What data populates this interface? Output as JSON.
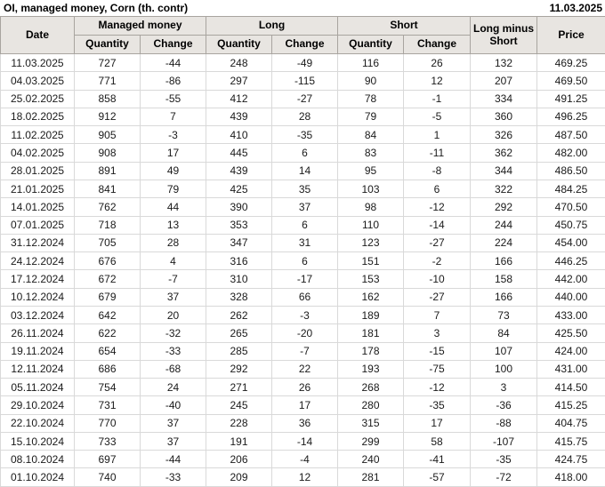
{
  "title": "OI, managed money, Corn (th. contr)",
  "report_date": "11.03.2025",
  "colors": {
    "negative_change": "#cc2222",
    "positive_change": "#1f8c1f",
    "header_background": "#e8e5e1",
    "body_grid": "#d9d9d9",
    "header_grid": "#a8a49f"
  },
  "chart_data": {
    "type": "table",
    "title": "OI, managed money, Corn (th. contr)",
    "as_of_date": "11.03.2025",
    "header": {
      "date": "Date",
      "managed_money": "Managed money",
      "long": "Long",
      "short": "Short",
      "long_minus_short": "Long minus Short",
      "price": "Price",
      "quantity": "Quantity",
      "change": "Change"
    },
    "columns": [
      "Date",
      "Managed money Quantity",
      "Managed money Change",
      "Long Quantity",
      "Long Change",
      "Short Quantity",
      "Short Change",
      "Long minus Short",
      "Price"
    ],
    "rows": [
      {
        "date": "11.03.2025",
        "mm_qty": 727,
        "mm_chg": -44,
        "long_qty": 248,
        "long_chg": -49,
        "short_qty": 116,
        "short_chg": 26,
        "lms": 132,
        "price": "469.25"
      },
      {
        "date": "04.03.2025",
        "mm_qty": 771,
        "mm_chg": -86,
        "long_qty": 297,
        "long_chg": -115,
        "short_qty": 90,
        "short_chg": 12,
        "lms": 207,
        "price": "469.50"
      },
      {
        "date": "25.02.2025",
        "mm_qty": 858,
        "mm_chg": -55,
        "long_qty": 412,
        "long_chg": -27,
        "short_qty": 78,
        "short_chg": -1,
        "lms": 334,
        "price": "491.25"
      },
      {
        "date": "18.02.2025",
        "mm_qty": 912,
        "mm_chg": 7,
        "long_qty": 439,
        "long_chg": 28,
        "short_qty": 79,
        "short_chg": -5,
        "lms": 360,
        "price": "496.25"
      },
      {
        "date": "11.02.2025",
        "mm_qty": 905,
        "mm_chg": -3,
        "long_qty": 410,
        "long_chg": -35,
        "short_qty": 84,
        "short_chg": 1,
        "lms": 326,
        "price": "487.50"
      },
      {
        "date": "04.02.2025",
        "mm_qty": 908,
        "mm_chg": 17,
        "long_qty": 445,
        "long_chg": 6,
        "short_qty": 83,
        "short_chg": -11,
        "lms": 362,
        "price": "482.00"
      },
      {
        "date": "28.01.2025",
        "mm_qty": 891,
        "mm_chg": 49,
        "long_qty": 439,
        "long_chg": 14,
        "short_qty": 95,
        "short_chg": -8,
        "lms": 344,
        "price": "486.50"
      },
      {
        "date": "21.01.2025",
        "mm_qty": 841,
        "mm_chg": 79,
        "long_qty": 425,
        "long_chg": 35,
        "short_qty": 103,
        "short_chg": 6,
        "lms": 322,
        "price": "484.25"
      },
      {
        "date": "14.01.2025",
        "mm_qty": 762,
        "mm_chg": 44,
        "long_qty": 390,
        "long_chg": 37,
        "short_qty": 98,
        "short_chg": -12,
        "lms": 292,
        "price": "470.50"
      },
      {
        "date": "07.01.2025",
        "mm_qty": 718,
        "mm_chg": 13,
        "long_qty": 353,
        "long_chg": 6,
        "short_qty": 110,
        "short_chg": -14,
        "lms": 244,
        "price": "450.75"
      },
      {
        "date": "31.12.2024",
        "mm_qty": 705,
        "mm_chg": 28,
        "long_qty": 347,
        "long_chg": 31,
        "short_qty": 123,
        "short_chg": -27,
        "lms": 224,
        "price": "454.00"
      },
      {
        "date": "24.12.2024",
        "mm_qty": 676,
        "mm_chg": 4,
        "long_qty": 316,
        "long_chg": 6,
        "short_qty": 151,
        "short_chg": -2,
        "lms": 166,
        "price": "446.25"
      },
      {
        "date": "17.12.2024",
        "mm_qty": 672,
        "mm_chg": -7,
        "long_qty": 310,
        "long_chg": -17,
        "short_qty": 153,
        "short_chg": -10,
        "lms": 158,
        "price": "442.00"
      },
      {
        "date": "10.12.2024",
        "mm_qty": 679,
        "mm_chg": 37,
        "long_qty": 328,
        "long_chg": 66,
        "short_qty": 162,
        "short_chg": -27,
        "lms": 166,
        "price": "440.00"
      },
      {
        "date": "03.12.2024",
        "mm_qty": 642,
        "mm_chg": 20,
        "long_qty": 262,
        "long_chg": -3,
        "short_qty": 189,
        "short_chg": 7,
        "lms": 73,
        "price": "433.00"
      },
      {
        "date": "26.11.2024",
        "mm_qty": 622,
        "mm_chg": -32,
        "long_qty": 265,
        "long_chg": -20,
        "short_qty": 181,
        "short_chg": 3,
        "lms": 84,
        "price": "425.50"
      },
      {
        "date": "19.11.2024",
        "mm_qty": 654,
        "mm_chg": -33,
        "long_qty": 285,
        "long_chg": -7,
        "short_qty": 178,
        "short_chg": -15,
        "lms": 107,
        "price": "424.00"
      },
      {
        "date": "12.11.2024",
        "mm_qty": 686,
        "mm_chg": -68,
        "long_qty": 292,
        "long_chg": 22,
        "short_qty": 193,
        "short_chg": -75,
        "lms": 100,
        "price": "431.00"
      },
      {
        "date": "05.11.2024",
        "mm_qty": 754,
        "mm_chg": 24,
        "long_qty": 271,
        "long_chg": 26,
        "short_qty": 268,
        "short_chg": -12,
        "lms": 3,
        "price": "414.50"
      },
      {
        "date": "29.10.2024",
        "mm_qty": 731,
        "mm_chg": -40,
        "long_qty": 245,
        "long_chg": 17,
        "short_qty": 280,
        "short_chg": -35,
        "lms": -36,
        "price": "415.25"
      },
      {
        "date": "22.10.2024",
        "mm_qty": 770,
        "mm_chg": 37,
        "long_qty": 228,
        "long_chg": 36,
        "short_qty": 315,
        "short_chg": 17,
        "lms": -88,
        "price": "404.75"
      },
      {
        "date": "15.10.2024",
        "mm_qty": 733,
        "mm_chg": 37,
        "long_qty": 191,
        "long_chg": -14,
        "short_qty": 299,
        "short_chg": 58,
        "lms": -107,
        "price": "415.75"
      },
      {
        "date": "08.10.2024",
        "mm_qty": 697,
        "mm_chg": -44,
        "long_qty": 206,
        "long_chg": -4,
        "short_qty": 240,
        "short_chg": -41,
        "lms": -35,
        "price": "424.75"
      },
      {
        "date": "01.10.2024",
        "mm_qty": 740,
        "mm_chg": -33,
        "long_qty": 209,
        "long_chg": 12,
        "short_qty": 281,
        "short_chg": -57,
        "lms": -72,
        "price": "418.00"
      }
    ]
  }
}
